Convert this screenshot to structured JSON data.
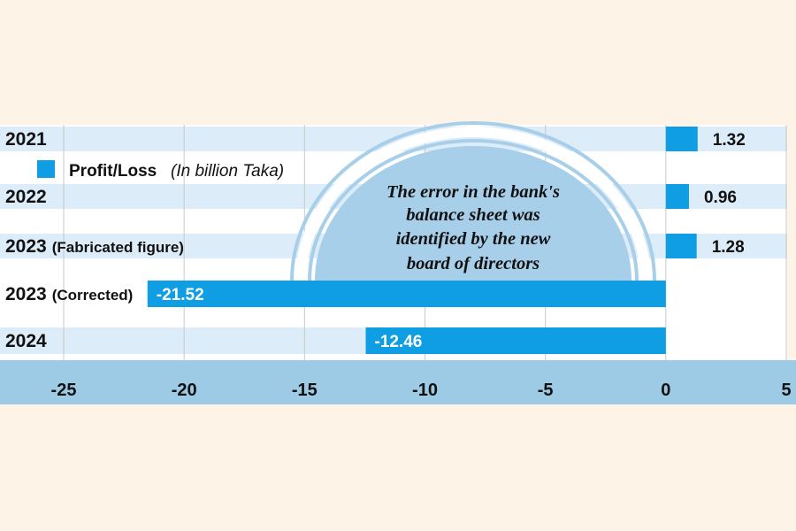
{
  "chart_data": {
    "type": "bar",
    "orientation": "horizontal",
    "categories": [
      "2021",
      "2022",
      "2023 (Fabricated figure)",
      "2023 (Corrected)",
      "2024"
    ],
    "category_labels": [
      {
        "year": "2021",
        "note": ""
      },
      {
        "year": "2022",
        "note": ""
      },
      {
        "year": "2023",
        "note": "(Fabricated figure)"
      },
      {
        "year": "2023",
        "note": "(Corrected)"
      },
      {
        "year": "2024",
        "note": ""
      }
    ],
    "values": [
      1.32,
      0.96,
      1.28,
      -21.52,
      -12.46
    ],
    "value_labels": [
      "1.32",
      "0.96",
      "1.28",
      "-21.52",
      "-12.46"
    ],
    "xlim": [
      -25,
      5
    ],
    "xticks": [
      -25,
      -20,
      -15,
      -10,
      -5,
      0,
      5
    ],
    "xtick_labels": [
      "-25",
      "-20",
      "-15",
      "-10",
      "-5",
      "0",
      "5"
    ],
    "grid": true,
    "legend": {
      "label": "Profit/Loss",
      "unit": "(In billion Taka)",
      "placement": "top-left"
    },
    "annotation": [
      "The error in the bank's",
      "balance sheet was",
      "identified by the new",
      "board of directors"
    ],
    "colors": {
      "bar": "#0f9ee3",
      "band": "#dcecf8",
      "arc": "#a8cfe9",
      "axis_band": "#9dcbe6",
      "background": "#fdf3e7",
      "plot_background": "#ffffff"
    }
  }
}
